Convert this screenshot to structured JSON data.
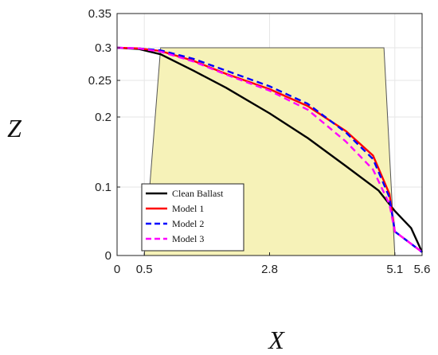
{
  "chart_data": {
    "type": "line",
    "title": "",
    "xlabel": "X",
    "ylabel": "Z",
    "xlim": [
      0,
      5.6
    ],
    "ylim": [
      0,
      0.35
    ],
    "x_ticks": [
      "0",
      "0.5",
      "2.8",
      "5.1",
      "5.6"
    ],
    "x_tick_values": [
      0,
      0.5,
      2.8,
      5.1,
      5.6
    ],
    "y_ticks": [
      "0",
      "0.1",
      "0.2",
      "0.25",
      "0.3",
      "0.35"
    ],
    "y_tick_values": [
      0,
      0.1,
      0.2,
      0.25,
      0.3,
      0.35
    ],
    "y_scale": "non-uniform (ticks as printed)",
    "grid": true,
    "legend_position": "bottom-left",
    "region": {
      "shape": "trapezoid",
      "fill": "#f6f2b8",
      "points": [
        [
          0.5,
          0
        ],
        [
          0.8,
          0.3
        ],
        [
          4.9,
          0.3
        ],
        [
          5.1,
          0
        ]
      ]
    },
    "series": [
      {
        "name": "Clean Ballast",
        "color": "#000000",
        "dash": "solid",
        "x": [
          0,
          0.4,
          0.8,
          1.4,
          2.0,
          2.8,
          3.5,
          4.2,
          4.8,
          5.1,
          5.4,
          5.6
        ],
        "y": [
          0.3,
          0.298,
          0.29,
          0.265,
          0.24,
          0.205,
          0.17,
          0.13,
          0.095,
          0.065,
          0.04,
          0.005
        ]
      },
      {
        "name": "Model 1",
        "color": "#ff0000",
        "dash": "solid",
        "x": [
          0,
          0.4,
          0.8,
          1.4,
          2.0,
          2.8,
          3.5,
          4.2,
          4.7,
          5.0,
          5.1,
          5.6
        ],
        "y": [
          0.3,
          0.299,
          0.295,
          0.28,
          0.26,
          0.238,
          0.215,
          0.18,
          0.145,
          0.09,
          0.035,
          0.005
        ]
      },
      {
        "name": "Model 2",
        "color": "#0000ff",
        "dash": "dashed",
        "x": [
          0,
          0.4,
          0.8,
          1.4,
          2.0,
          2.8,
          3.5,
          4.2,
          4.7,
          5.0,
          5.1,
          5.6
        ],
        "y": [
          0.3,
          0.299,
          0.296,
          0.283,
          0.265,
          0.242,
          0.218,
          0.178,
          0.14,
          0.085,
          0.035,
          0.005
        ]
      },
      {
        "name": "Model 3",
        "color": "#ff00ff",
        "dash": "dashed",
        "x": [
          0,
          0.4,
          0.8,
          1.4,
          2.0,
          2.8,
          3.5,
          4.2,
          4.7,
          5.0,
          5.1,
          5.6
        ],
        "y": [
          0.3,
          0.299,
          0.294,
          0.279,
          0.259,
          0.236,
          0.21,
          0.165,
          0.125,
          0.075,
          0.035,
          0.005
        ]
      }
    ]
  }
}
